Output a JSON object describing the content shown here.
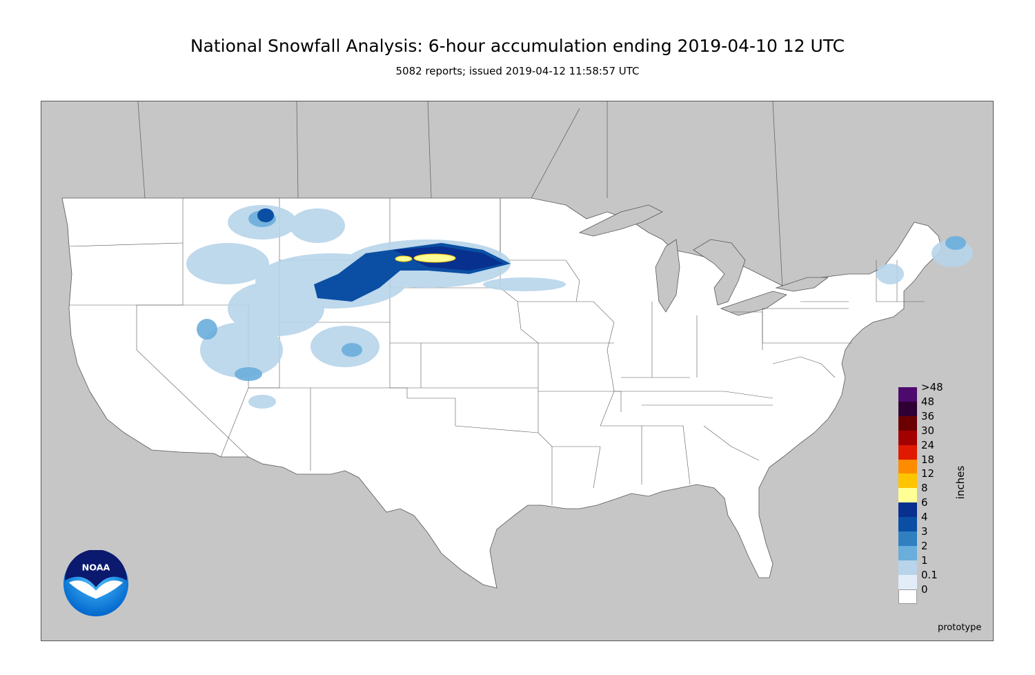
{
  "header": {
    "title": "National Snowfall Analysis: 6-hour accumulation ending 2019-04-10 12 UTC",
    "subtitle": "5082 reports; issued 2019-04-12 11:58:57 UTC"
  },
  "legend": {
    "unit": "inches",
    "entries": [
      {
        "label": ">48",
        "color": "#4d0a6e"
      },
      {
        "label": "48",
        "color": "#2e0033"
      },
      {
        "label": "36",
        "color": "#6b0000"
      },
      {
        "label": "30",
        "color": "#a30000"
      },
      {
        "label": "24",
        "color": "#e01a00"
      },
      {
        "label": "18",
        "color": "#ff8c00"
      },
      {
        "label": "12",
        "color": "#ffc400"
      },
      {
        "label": "8",
        "color": "#ffff96"
      },
      {
        "label": "6",
        "color": "#08308f"
      },
      {
        "label": "4",
        "color": "#0a4fa3"
      },
      {
        "label": "3",
        "color": "#2f7fc1"
      },
      {
        "label": "2",
        "color": "#6aaedb"
      },
      {
        "label": "1",
        "color": "#b7d4ea"
      },
      {
        "label": "0.1",
        "color": "#e2edf7"
      },
      {
        "label": "0",
        "color": "#ffffff"
      }
    ]
  },
  "footer": {
    "note": "prototype"
  },
  "logo": {
    "text": "NOAA",
    "icon": "noaa-logo-icon"
  },
  "colors": {
    "land_outside_us": "#c6c6c6",
    "us_land": "#ffffff",
    "boundary": "#555555"
  }
}
